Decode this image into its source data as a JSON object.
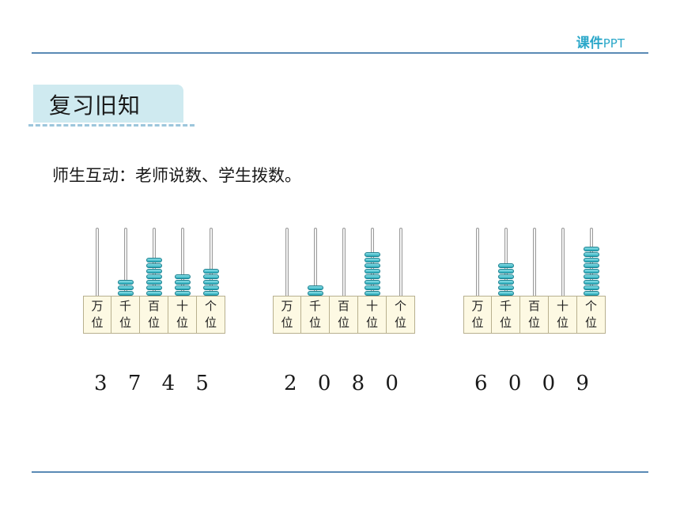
{
  "header": {
    "brand_bold": "课件",
    "brand_rest": "PPT"
  },
  "section": {
    "title": "复习旧知"
  },
  "intro": "师生互动：老师说数、学生拨数。",
  "abacuses": [
    {
      "beads": [
        0,
        3,
        7,
        4,
        5
      ],
      "number": "3 7 4 5"
    },
    {
      "beads": [
        0,
        2,
        0,
        8,
        0
      ],
      "number": "2 0 8 0"
    },
    {
      "beads": [
        0,
        6,
        0,
        0,
        9
      ],
      "number": "6 0 0 9"
    }
  ],
  "place_labels": [
    [
      "万",
      "位"
    ],
    [
      "千",
      "位"
    ],
    [
      "百",
      "位"
    ],
    [
      "十",
      "位"
    ],
    [
      "个",
      "位"
    ]
  ],
  "colors": {
    "accent": "#2aa7c9",
    "bead": "#27a8b8",
    "rule": "#5a8ab5",
    "tab": "#cfeaf0"
  }
}
